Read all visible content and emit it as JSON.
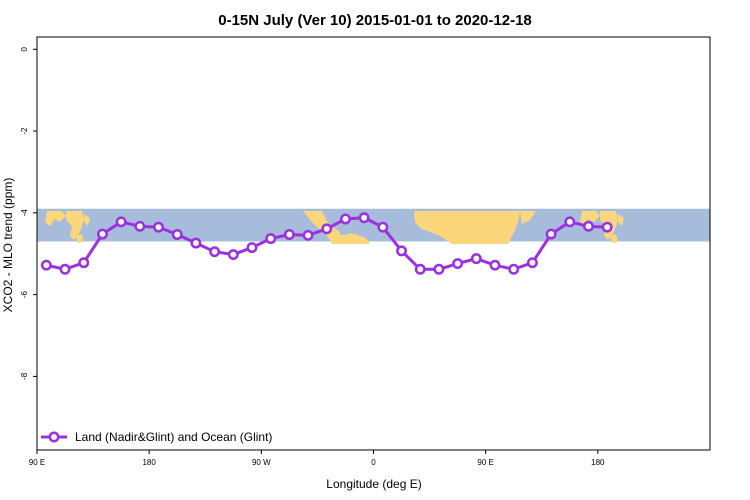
{
  "chart_data": {
    "type": "line",
    "title": "0-15N July (Ver 10)   2015-01-01 to 2020-12-18",
    "xlabel": "Longitude (deg E)",
    "ylabel": "XCO2 - MLO trend (ppm)",
    "xlim": [
      30,
      390
    ],
    "ylim": [
      -9.8,
      0.3
    ],
    "x_ticks": [
      {
        "value": 30,
        "label": "90 E"
      },
      {
        "value": 90,
        "label": "180"
      },
      {
        "value": 150,
        "label": "90 W"
      },
      {
        "value": 210,
        "label": "0"
      },
      {
        "value": 270,
        "label": "90 E"
      },
      {
        "value": 330,
        "label": "180"
      }
    ],
    "y_ticks": [
      {
        "value": 0,
        "label": "0"
      },
      {
        "value": -2,
        "label": "-2"
      },
      {
        "value": -4,
        "label": "-4"
      },
      {
        "value": -6,
        "label": "-6"
      },
      {
        "value": -8,
        "label": "-8"
      }
    ],
    "grid": false,
    "legend": {
      "position": "bottom-left"
    },
    "background_map": {
      "y_range": [
        -4.7,
        -3.9
      ],
      "ocean_color": "#a7bbdb",
      "land_color": "#fcd67a"
    },
    "series": [
      {
        "name": "Land (Nadir&Glint) and Ocean (Glint)",
        "color": "#9b30e0",
        "x": [
          35,
          45,
          55,
          65,
          75,
          85,
          95,
          105,
          115,
          125,
          135,
          145,
          155,
          165,
          175,
          185,
          195,
          205,
          215,
          225,
          235,
          245,
          255,
          265,
          275,
          285,
          295,
          305,
          315,
          325,
          335
        ],
        "y": [
          -5.28,
          -5.38,
          -5.22,
          -4.52,
          -4.22,
          -4.33,
          -4.35,
          -4.53,
          -4.74,
          -4.95,
          -5.02,
          -4.85,
          -4.63,
          -4.53,
          -4.55,
          -4.39,
          -4.15,
          -4.12,
          -4.35,
          -4.93,
          -5.38,
          -5.38,
          -5.24,
          -5.12,
          -5.28,
          -5.38,
          -5.22,
          -4.52,
          -4.22,
          -4.33,
          -4.35
        ]
      }
    ]
  }
}
